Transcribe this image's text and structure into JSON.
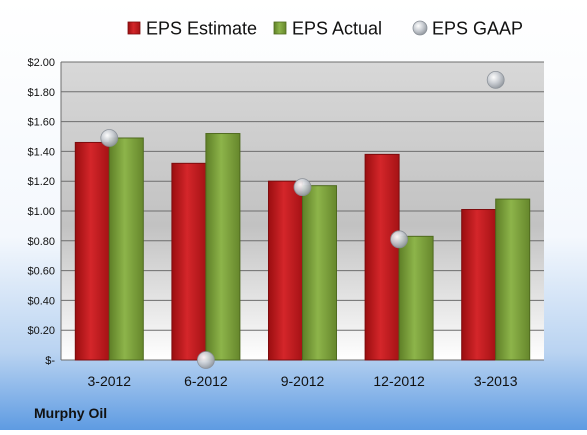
{
  "company": "Murphy Oil",
  "chart_data": {
    "type": "bar",
    "categories": [
      "3-2012",
      "6-2012",
      "9-2012",
      "12-2012",
      "3-2013"
    ],
    "series": [
      {
        "name": "EPS Estimate",
        "kind": "bar",
        "color": "#C8191C",
        "values": [
          1.46,
          1.32,
          1.2,
          1.38,
          1.01
        ]
      },
      {
        "name": "EPS Actual",
        "kind": "bar",
        "color": "#7FA63A",
        "values": [
          1.49,
          1.52,
          1.17,
          0.83,
          1.08
        ]
      },
      {
        "name": "EPS GAAP",
        "kind": "scatter",
        "color": "#B8BDC4",
        "values": [
          1.49,
          0.0,
          1.16,
          0.81,
          1.88
        ]
      }
    ],
    "ylim": [
      0,
      2.0
    ],
    "yticks": [
      "$-",
      "$0.20",
      "$0.40",
      "$0.60",
      "$0.80",
      "$1.00",
      "$1.20",
      "$1.40",
      "$1.60",
      "$1.80",
      "$2.00"
    ],
    "grid": true,
    "legend": "top"
  }
}
